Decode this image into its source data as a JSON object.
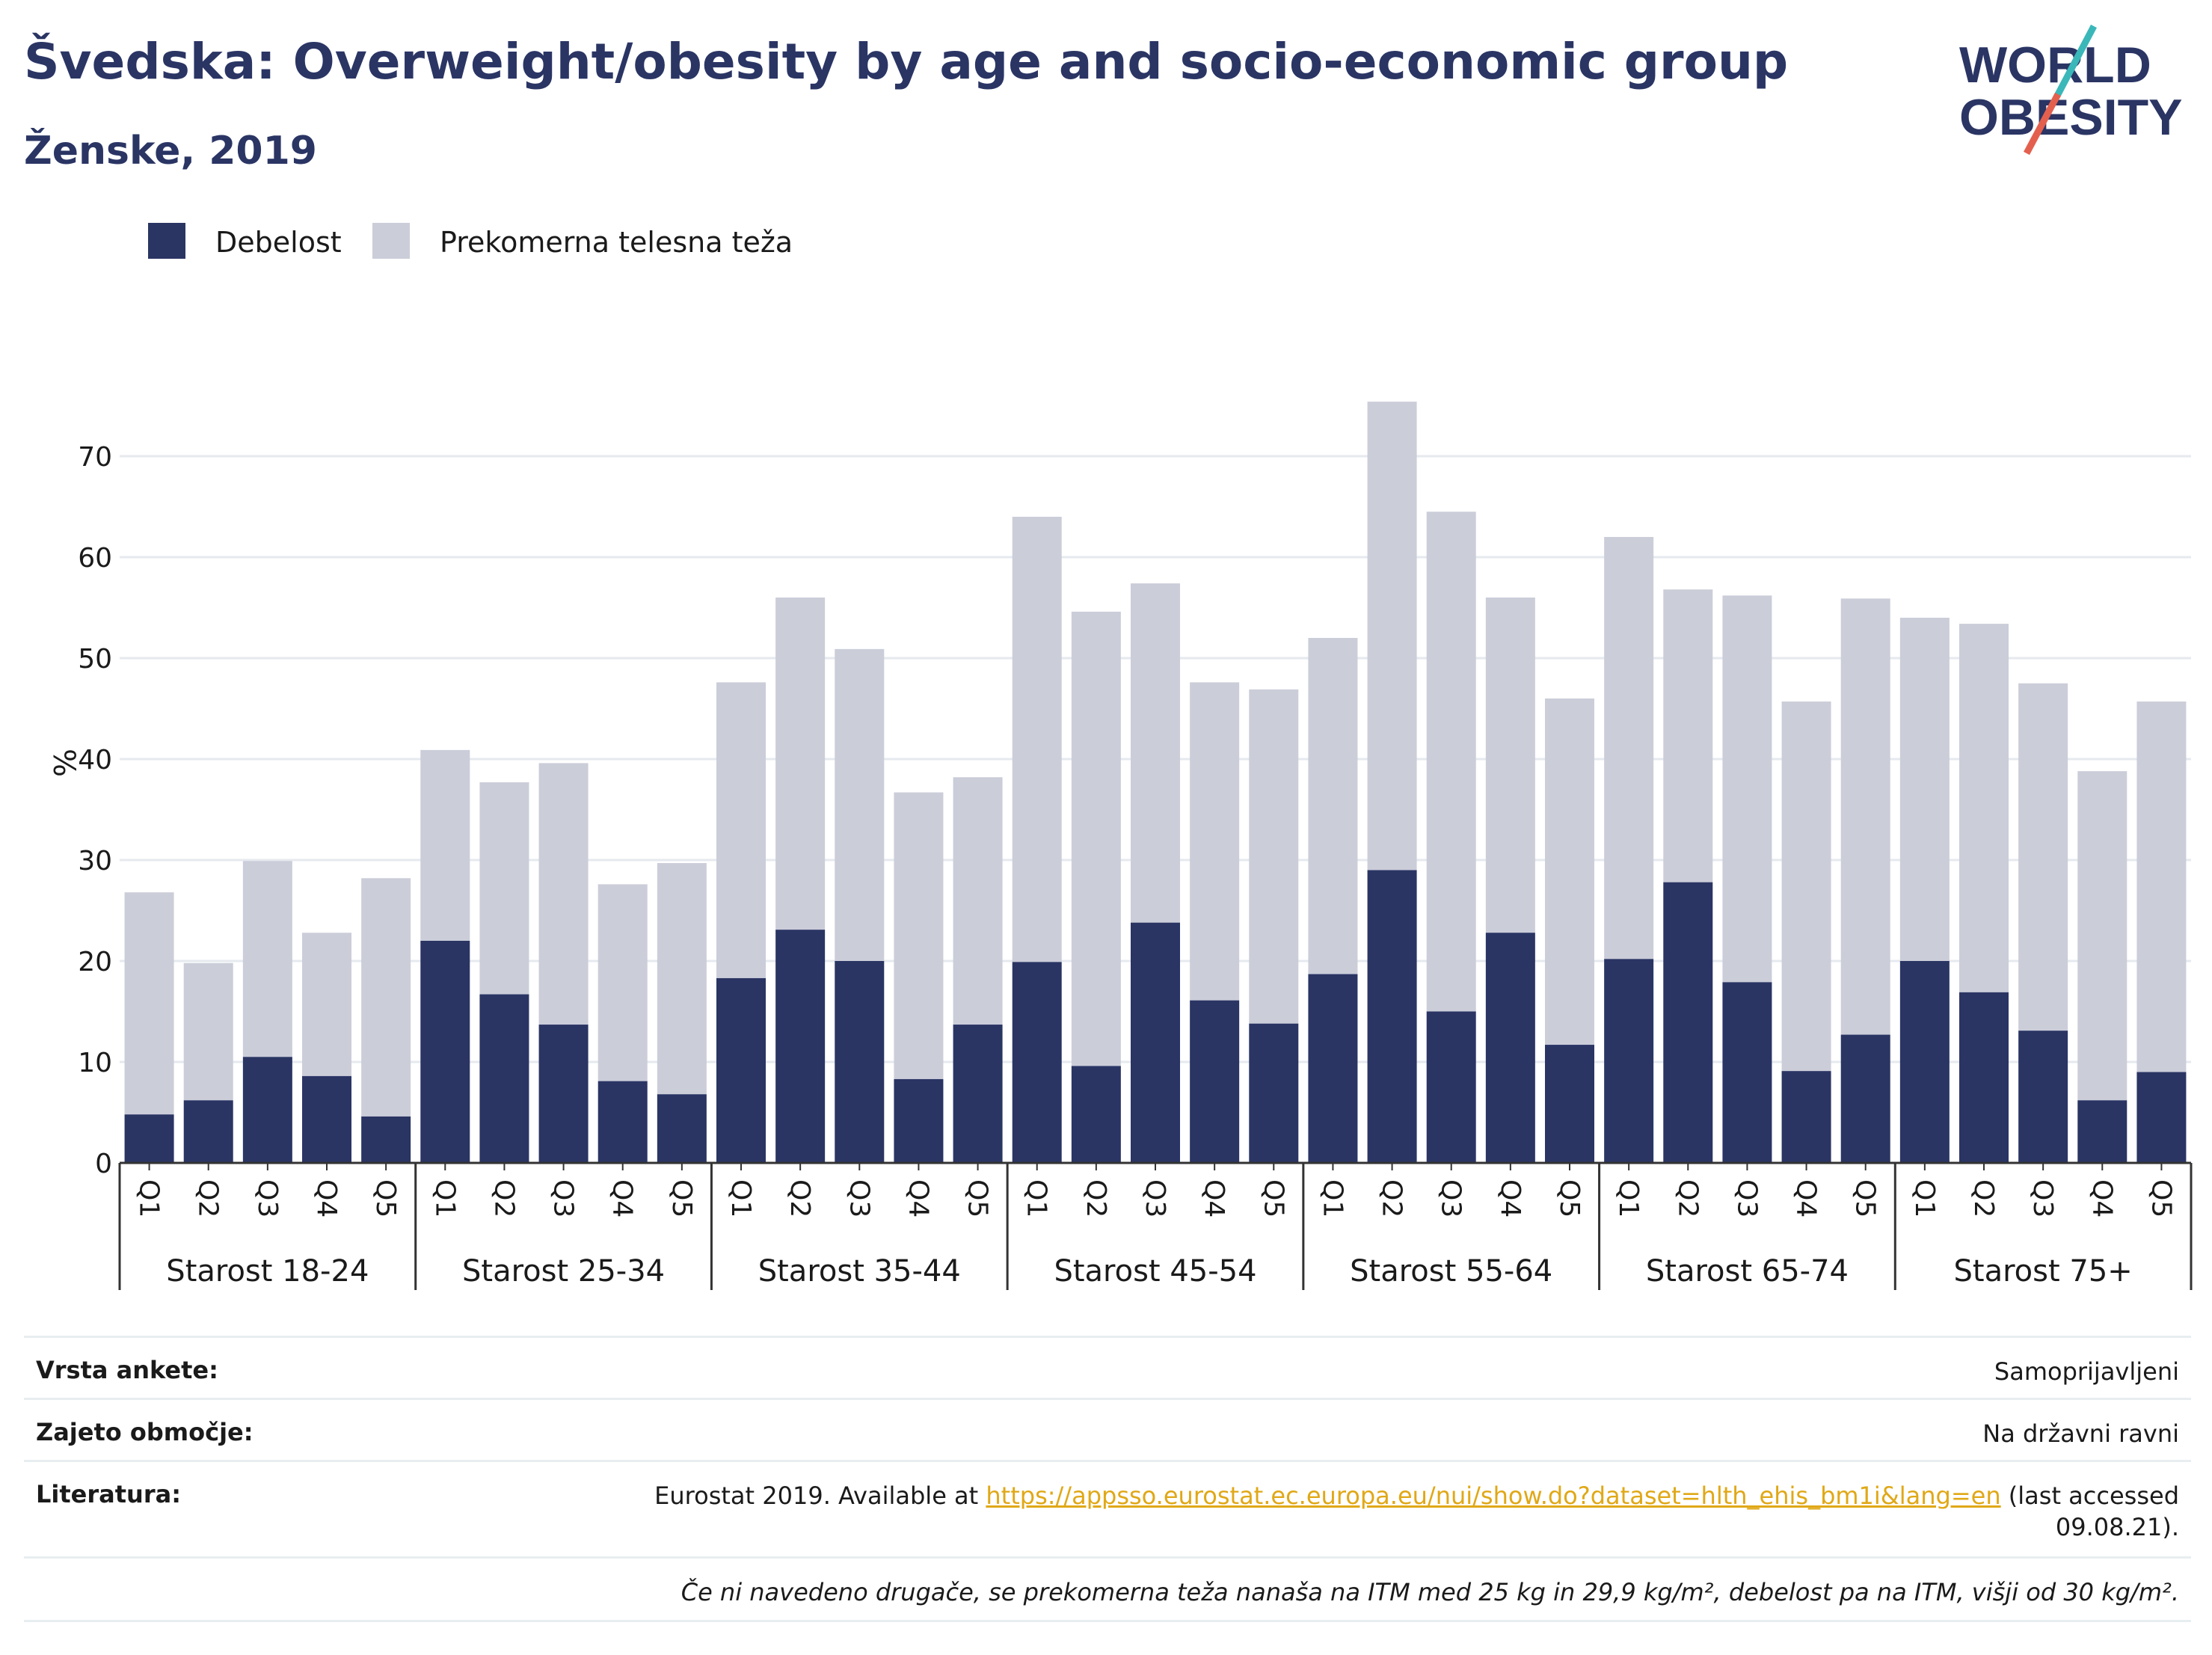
{
  "header": {
    "title": "Švedska: Overweight/obesity by age and socio-economic group",
    "subtitle": "Ženske, 2019"
  },
  "logo": {
    "line1": "WORLD",
    "line2": "OBESITY",
    "accent_teal": "#3ab7b9",
    "accent_red": "#e4604e",
    "text_color": "#2a3564"
  },
  "colors": {
    "obesity": "#2a3564",
    "overweight": "#cbcdd9",
    "grid": "#e6e9ee",
    "axis": "#333333"
  },
  "chart_data": {
    "type": "bar",
    "stacked": true,
    "ylabel": "%",
    "ylim": [
      0,
      78
    ],
    "yticks": [
      0,
      10,
      20,
      30,
      40,
      50,
      60,
      70
    ],
    "grid": true,
    "legend_position": "top-left",
    "quintiles": [
      "Q1",
      "Q2",
      "Q3",
      "Q4",
      "Q5"
    ],
    "groups": [
      "Starost 18-24",
      "Starost 25-34",
      "Starost 35-44",
      "Starost 45-54",
      "Starost 55-64",
      "Starost 65-74",
      "Starost 75+"
    ],
    "series": [
      {
        "name": "Debelost",
        "values": [
          4.8,
          6.2,
          10.5,
          8.6,
          4.6,
          22.0,
          16.7,
          13.7,
          8.1,
          6.8,
          18.3,
          23.1,
          20.0,
          8.3,
          13.7,
          19.9,
          9.6,
          23.8,
          16.1,
          13.8,
          18.7,
          29.0,
          15.0,
          22.8,
          11.7,
          20.2,
          27.8,
          17.9,
          9.1,
          12.7,
          20.0,
          16.9,
          13.1,
          6.2,
          9.0
        ]
      },
      {
        "name": "Prekomerna telesna teža",
        "values": [
          22.0,
          13.6,
          19.4,
          14.2,
          23.6,
          18.9,
          21.0,
          25.9,
          19.5,
          22.9,
          29.3,
          32.9,
          30.9,
          28.4,
          24.5,
          44.1,
          45.0,
          33.6,
          31.5,
          33.1,
          33.3,
          46.4,
          49.5,
          33.2,
          34.3,
          41.8,
          29.0,
          38.3,
          36.6,
          43.2,
          34.0,
          36.5,
          34.4,
          32.6,
          36.7
        ]
      }
    ]
  },
  "info": {
    "survey_label": "Vrsta ankete:",
    "survey_value": "Samoprijavljeni",
    "coverage_label": "Zajeto območje:",
    "coverage_value": "Na državni ravni",
    "reference_label": "Literatura:",
    "reference_prefix": "Eurostat 2019. Available at",
    "reference_link": "https://appsso.eurostat.ec.europa.eu/nui/show.do?dataset=hlth_ehis_bm1i&lang=en",
    "reference_suffix": "(last accessed 09.08.21).",
    "note": "Če ni navedeno drugače, se prekomerna teža nanaša na ITM med 25 kg in 29,9 kg/m², debelost pa na ITM, višji od 30 kg/m²."
  }
}
